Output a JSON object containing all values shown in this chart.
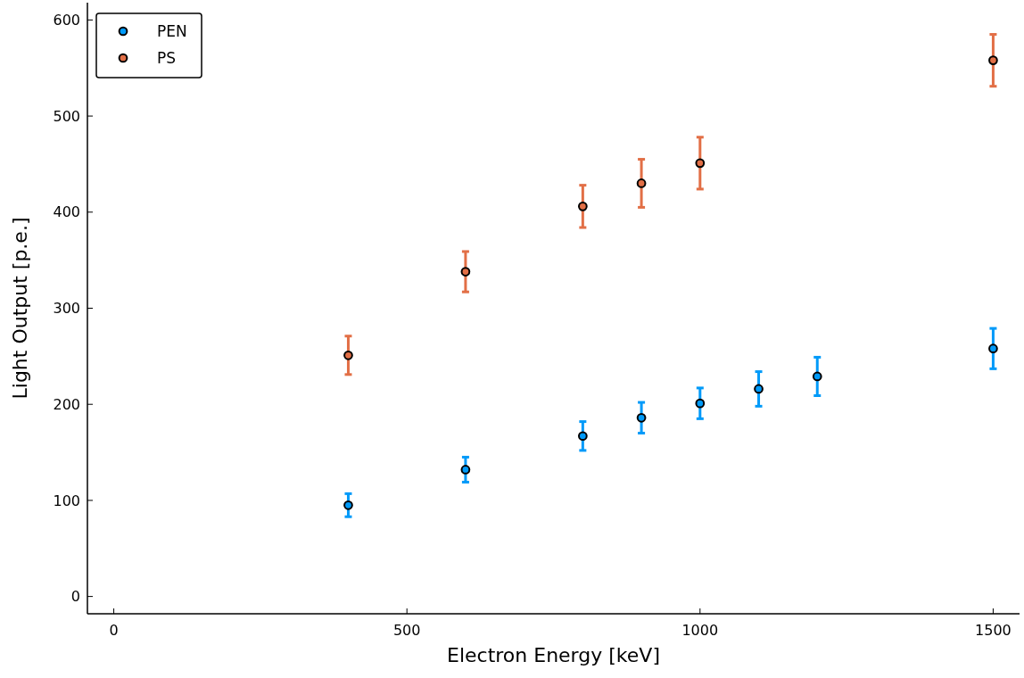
{
  "chart_data": {
    "type": "scatter",
    "xlabel": "Electron Energy [keV]",
    "ylabel": "Light Output [p.e.]",
    "xlim": [
      -45,
      1545
    ],
    "xticks": [
      0,
      500,
      1000,
      1500
    ],
    "ylim": [
      -18,
      618
    ],
    "yticks": [
      0,
      100,
      200,
      300,
      400,
      500,
      600
    ],
    "grid": false,
    "legend": "top left",
    "marker": "circle",
    "series": [
      {
        "name": "PEN",
        "color": "#009af9",
        "x": [
          400,
          600,
          800,
          900,
          1000,
          1100,
          1200,
          1500
        ],
        "values": [
          95,
          132,
          167,
          186,
          201,
          216,
          229,
          258
        ],
        "errors": [
          12,
          13,
          15,
          16,
          16,
          18,
          20,
          21
        ]
      },
      {
        "name": "PS",
        "color": "#e26f46",
        "x": [
          400,
          600,
          800,
          900,
          1000,
          1500
        ],
        "values": [
          251,
          338,
          406,
          430,
          451,
          558
        ],
        "errors": [
          20,
          21,
          22,
          25,
          27,
          27
        ]
      }
    ]
  }
}
